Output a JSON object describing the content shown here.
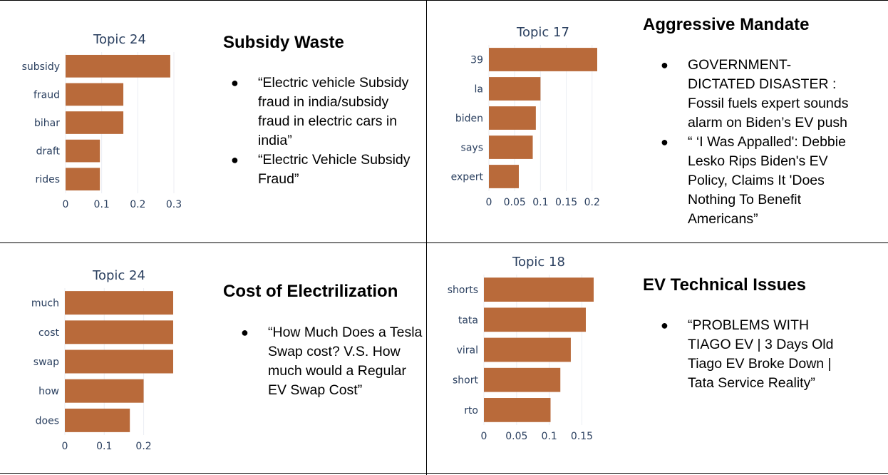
{
  "panels": [
    {
      "heading": "Subsidy Waste",
      "bullets": [
        "“Electric vehicle Subsidy fraud in india/subsidy fraud in electric cars in india”",
        "“Electric Vehicle Subsidy Fraud”"
      ]
    },
    {
      "heading": "Aggressive Mandate",
      "bullets": [
        "GOVERNMENT-DICTATED DISASTER : Fossil fuels expert sounds alarm on Biden’s EV push",
        "“ ‘I Was Appalled': Debbie Lesko Rips Biden's EV Policy, Claims It 'Does Nothing To Benefit Americans”"
      ]
    },
    {
      "heading": "Cost of Electrilization",
      "bullets": [
        "“How Much Does a Tesla Swap cost? V.S. How much would a Regular EV Swap Cost”"
      ]
    },
    {
      "heading": "EV Technical Issues",
      "bullets": [
        "“PROBLEMS WITH TIAGO EV | 3 Days Old Tiago EV Broke Down | Tata Service Reality”"
      ]
    }
  ],
  "colors": {
    "bar": "#b96a3a",
    "grid": "#ebeef3",
    "axis_text": "#2a3f5f"
  },
  "chart_data": [
    {
      "type": "bar",
      "orientation": "horizontal",
      "title": "Topic 24",
      "categories": [
        "subsidy",
        "fraud",
        "bihar",
        "draft",
        "rides"
      ],
      "values": [
        0.29,
        0.16,
        0.16,
        0.095,
        0.095
      ],
      "xlim": [
        0,
        0.3
      ],
      "xticks": [
        0,
        0.1,
        0.2,
        0.3
      ],
      "xtick_labels": [
        "0",
        "0.1",
        "0.2",
        "0.3"
      ]
    },
    {
      "type": "bar",
      "orientation": "horizontal",
      "title": "Topic 17",
      "categories": [
        "39",
        "la",
        "biden",
        "says",
        "expert"
      ],
      "values": [
        0.21,
        0.1,
        0.091,
        0.085,
        0.058
      ],
      "xlim": [
        0,
        0.21
      ],
      "xticks": [
        0,
        0.05,
        0.1,
        0.15,
        0.2
      ],
      "xtick_labels": [
        "0",
        "0.05",
        "0.1",
        "0.15",
        "0.2"
      ]
    },
    {
      "type": "bar",
      "orientation": "horizontal",
      "title": "Topic 24",
      "categories": [
        "much",
        "cost",
        "swap",
        "how",
        "does"
      ],
      "values": [
        0.275,
        0.275,
        0.275,
        0.2,
        0.165
      ],
      "xlim": [
        0,
        0.275
      ],
      "xticks": [
        0,
        0.1,
        0.2
      ],
      "xtick_labels": [
        "0",
        "0.1",
        "0.2"
      ]
    },
    {
      "type": "bar",
      "orientation": "horizontal",
      "title": "Topic 18",
      "categories": [
        "shorts",
        "tata",
        "viral",
        "short",
        "rto"
      ],
      "values": [
        0.168,
        0.156,
        0.133,
        0.117,
        0.102
      ],
      "xlim": [
        0,
        0.168
      ],
      "xticks": [
        0,
        0.05,
        0.1,
        0.15
      ],
      "xtick_labels": [
        "0",
        "0.05",
        "0.1",
        "0.15"
      ]
    }
  ]
}
